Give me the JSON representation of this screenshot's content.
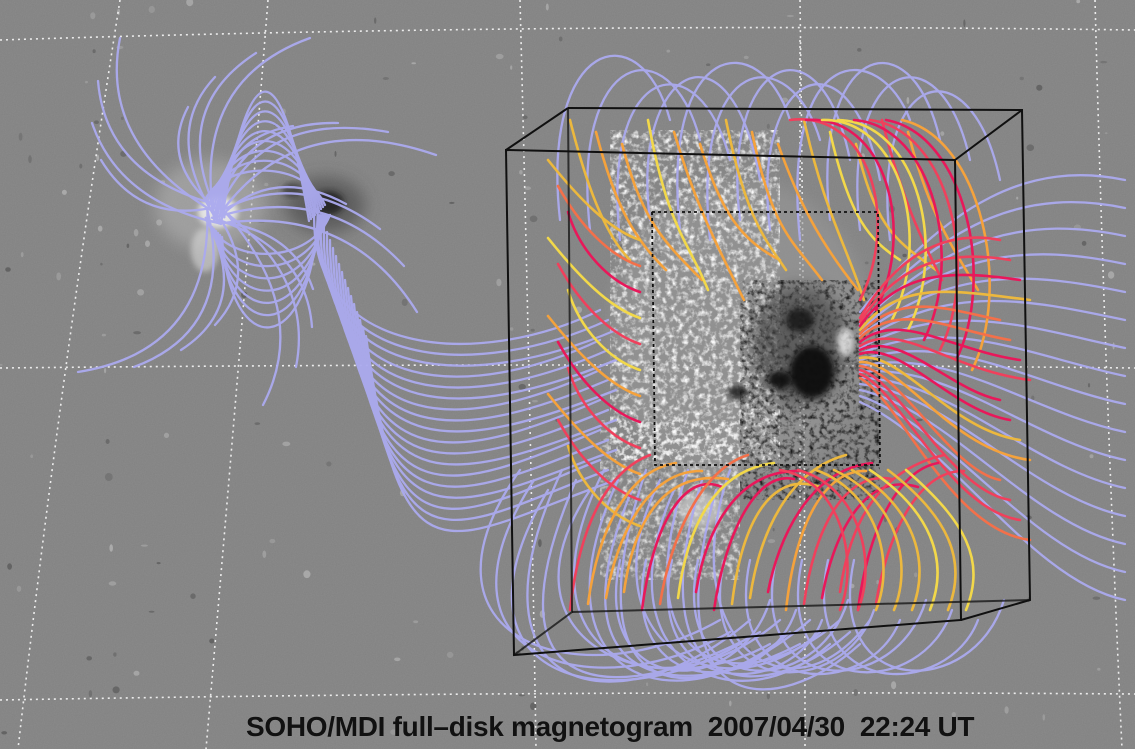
{
  "image": {
    "subject": "solar-magnetogram-with-field-line-extrapolation",
    "caption": "SOHO/MDI full–disk magnetogram  2007/04/30  22:24 UT"
  },
  "colors": {
    "background_gray": "#808080",
    "open_field_lines": "#aaaaee",
    "closed_field_lines_warm": [
      "#e8185a",
      "#f05a4a",
      "#f59a3c",
      "#f2d84a"
    ],
    "grid": "#ffffff",
    "box_edges": "#111111"
  }
}
